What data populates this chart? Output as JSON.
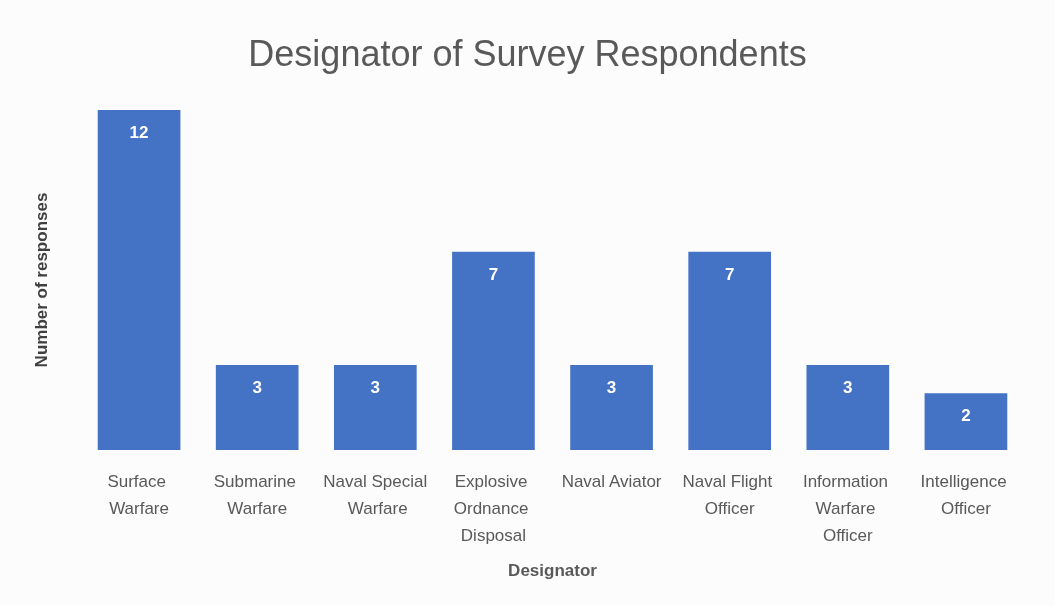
{
  "chart_data": {
    "type": "bar",
    "title": "Designator of Survey Respondents",
    "xlabel": "Designator",
    "ylabel": "Number of responses",
    "categories": [
      "Surface Warfare",
      "Submarine Warfare",
      "Naval Special Warfare",
      "Explosive Ordnance Disposal",
      "Naval Aviator",
      "Naval Flight Officer",
      "Information Warfare Officer",
      "Intelligence Officer"
    ],
    "values": [
      12,
      3,
      3,
      7,
      3,
      7,
      3,
      2
    ],
    "color": "#4472c4",
    "data_labels": true,
    "grid": false,
    "tick_labels": "x"
  }
}
